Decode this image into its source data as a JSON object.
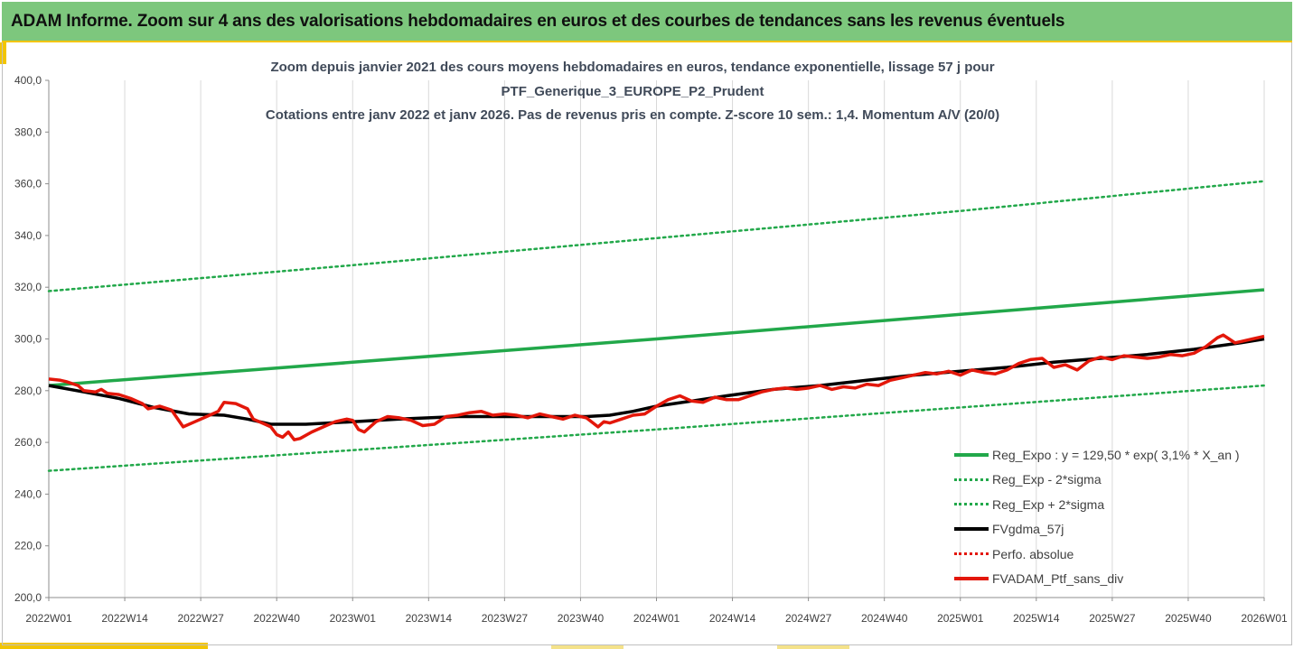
{
  "banner": {
    "title": "ADAM Informe. Zoom sur 4 ans des valorisations hebdomadaires en euros et des courbes de tendances sans les revenus éventuels"
  },
  "colors": {
    "banner_bg": "#7dc77d",
    "accent_yellow": "#f2c500",
    "reg_green": "#22a84a",
    "band_green": "#22a84a",
    "smooth_black": "#000000",
    "perf_red": "#e3170a"
  },
  "chart_data": {
    "type": "line",
    "title_lines": [
      "Zoom depuis janvier 2021 des cours moyens hebdomadaires  en euros, tendance exponentielle, lissage 57 j pour",
      "PTF_Generique_3_EUROPE_P2_Prudent",
      "Cotations entre janv 2022 et janv 2026. Pas de revenus pris en compte. Z-score 10 sem.: 1,4. Momentum A/V (20/0)"
    ],
    "x_tick_labels": [
      "2022W01",
      "2022W14",
      "2022W27",
      "2022W40",
      "2023W01",
      "2023W14",
      "2023W27",
      "2023W40",
      "2024W01",
      "2024W14",
      "2024W27",
      "2024W40",
      "2025W01",
      "2025W14",
      "2025W27",
      "2025W40",
      "2026W01"
    ],
    "y_tick_labels": [
      "200,0",
      "220,0",
      "240,0",
      "260,0",
      "280,0",
      "300,0",
      "320,0",
      "340,0",
      "360,0",
      "380,0",
      "400,0"
    ],
    "ylim": [
      200,
      400
    ],
    "x_range_weeks": [
      0,
      208
    ],
    "grid": "vertical",
    "legend_position": "bottom-right",
    "series": [
      {
        "name": "Reg_Expo : y = 129,50 * exp( 3,1% *  X_an )",
        "style": "solid-green",
        "points": [
          [
            0,
            282
          ],
          [
            52,
            291
          ],
          [
            104,
            300
          ],
          [
            156,
            309.5
          ],
          [
            208,
            319
          ]
        ]
      },
      {
        "name": "Reg_Exp - 2*sigma",
        "style": "dotted-green",
        "points": [
          [
            0,
            249
          ],
          [
            52,
            257
          ],
          [
            104,
            265
          ],
          [
            156,
            273.5
          ],
          [
            208,
            282
          ]
        ]
      },
      {
        "name": "Reg_Exp + 2*sigma",
        "style": "dotted-green",
        "points": [
          [
            0,
            318.5
          ],
          [
            52,
            328.5
          ],
          [
            104,
            339
          ],
          [
            156,
            349.5
          ],
          [
            208,
            361
          ]
        ]
      },
      {
        "name": "FVgdma_57j",
        "style": "solid-black",
        "points": [
          [
            0,
            282
          ],
          [
            6,
            279.5
          ],
          [
            12,
            277
          ],
          [
            18,
            273.5
          ],
          [
            24,
            271
          ],
          [
            30,
            270.5
          ],
          [
            34,
            269
          ],
          [
            38,
            267
          ],
          [
            44,
            267
          ],
          [
            52,
            268
          ],
          [
            60,
            269
          ],
          [
            70,
            270
          ],
          [
            80,
            270
          ],
          [
            92,
            270
          ],
          [
            96,
            270.5
          ],
          [
            100,
            272
          ],
          [
            104,
            274
          ],
          [
            110,
            276
          ],
          [
            116,
            278
          ],
          [
            124,
            280.5
          ],
          [
            132,
            282
          ],
          [
            140,
            284
          ],
          [
            148,
            286
          ],
          [
            156,
            287.5
          ],
          [
            164,
            289
          ],
          [
            172,
            291
          ],
          [
            180,
            292.5
          ],
          [
            188,
            294
          ],
          [
            196,
            296
          ],
          [
            204,
            298.5
          ],
          [
            208,
            300
          ]
        ]
      },
      {
        "name": "Perfo. absolue",
        "style": "dotted-red",
        "points": []
      },
      {
        "name": "FVADAM_Ptf_sans_div",
        "style": "solid-red",
        "points": [
          [
            0,
            284.5
          ],
          [
            2,
            284
          ],
          [
            3,
            283.5
          ],
          [
            5,
            282
          ],
          [
            6,
            280
          ],
          [
            8,
            279.5
          ],
          [
            9,
            280.5
          ],
          [
            10,
            279
          ],
          [
            12,
            278.5
          ],
          [
            14,
            277
          ],
          [
            16,
            275
          ],
          [
            17,
            273
          ],
          [
            19,
            274
          ],
          [
            21,
            272.5
          ],
          [
            23,
            266
          ],
          [
            25,
            268
          ],
          [
            27,
            270
          ],
          [
            29,
            272
          ],
          [
            30,
            275.5
          ],
          [
            32,
            275
          ],
          [
            34,
            273
          ],
          [
            35,
            269
          ],
          [
            37,
            267
          ],
          [
            38,
            266
          ],
          [
            39,
            263
          ],
          [
            40,
            262
          ],
          [
            41,
            264
          ],
          [
            42,
            261
          ],
          [
            43,
            261.5
          ],
          [
            45,
            264
          ],
          [
            47,
            266
          ],
          [
            49,
            268
          ],
          [
            51,
            269
          ],
          [
            52,
            268.5
          ],
          [
            53,
            265
          ],
          [
            54,
            264
          ],
          [
            56,
            268
          ],
          [
            58,
            270
          ],
          [
            60,
            269.5
          ],
          [
            62,
            268.5
          ],
          [
            64,
            266.5
          ],
          [
            66,
            267
          ],
          [
            68,
            270
          ],
          [
            70,
            270.5
          ],
          [
            72,
            271.5
          ],
          [
            74,
            272
          ],
          [
            76,
            270.5
          ],
          [
            78,
            271
          ],
          [
            80,
            270.5
          ],
          [
            82,
            269.5
          ],
          [
            84,
            271
          ],
          [
            86,
            270
          ],
          [
            88,
            269
          ],
          [
            90,
            270.5
          ],
          [
            92,
            269.5
          ],
          [
            94,
            266
          ],
          [
            95,
            268
          ],
          [
            96,
            267.5
          ],
          [
            98,
            269
          ],
          [
            100,
            270.5
          ],
          [
            102,
            271
          ],
          [
            104,
            274
          ],
          [
            106,
            276.5
          ],
          [
            108,
            278
          ],
          [
            110,
            276
          ],
          [
            112,
            275.5
          ],
          [
            114,
            277.5
          ],
          [
            116,
            276.5
          ],
          [
            118,
            276.5
          ],
          [
            120,
            278
          ],
          [
            122,
            279.5
          ],
          [
            124,
            280.5
          ],
          [
            126,
            281
          ],
          [
            128,
            280.5
          ],
          [
            130,
            281
          ],
          [
            132,
            282
          ],
          [
            134,
            280.5
          ],
          [
            136,
            281.5
          ],
          [
            138,
            281
          ],
          [
            140,
            282.5
          ],
          [
            142,
            282
          ],
          [
            144,
            284
          ],
          [
            146,
            285
          ],
          [
            148,
            286
          ],
          [
            150,
            287
          ],
          [
            152,
            286.5
          ],
          [
            154,
            287.5
          ],
          [
            156,
            286
          ],
          [
            158,
            288
          ],
          [
            160,
            287
          ],
          [
            162,
            286.5
          ],
          [
            164,
            288
          ],
          [
            166,
            290.5
          ],
          [
            168,
            292
          ],
          [
            170,
            292.5
          ],
          [
            172,
            289
          ],
          [
            174,
            290
          ],
          [
            176,
            288
          ],
          [
            178,
            291.5
          ],
          [
            180,
            293
          ],
          [
            182,
            292
          ],
          [
            184,
            293.5
          ],
          [
            186,
            293
          ],
          [
            188,
            292.5
          ],
          [
            190,
            293
          ],
          [
            192,
            294
          ],
          [
            194,
            293.5
          ],
          [
            196,
            294.5
          ],
          [
            198,
            297
          ],
          [
            200,
            300.5
          ],
          [
            201,
            301.5
          ],
          [
            202,
            300
          ],
          [
            203,
            298.5
          ],
          [
            204,
            299
          ],
          [
            205,
            299.5
          ],
          [
            206,
            300
          ],
          [
            208,
            301
          ]
        ]
      }
    ]
  }
}
